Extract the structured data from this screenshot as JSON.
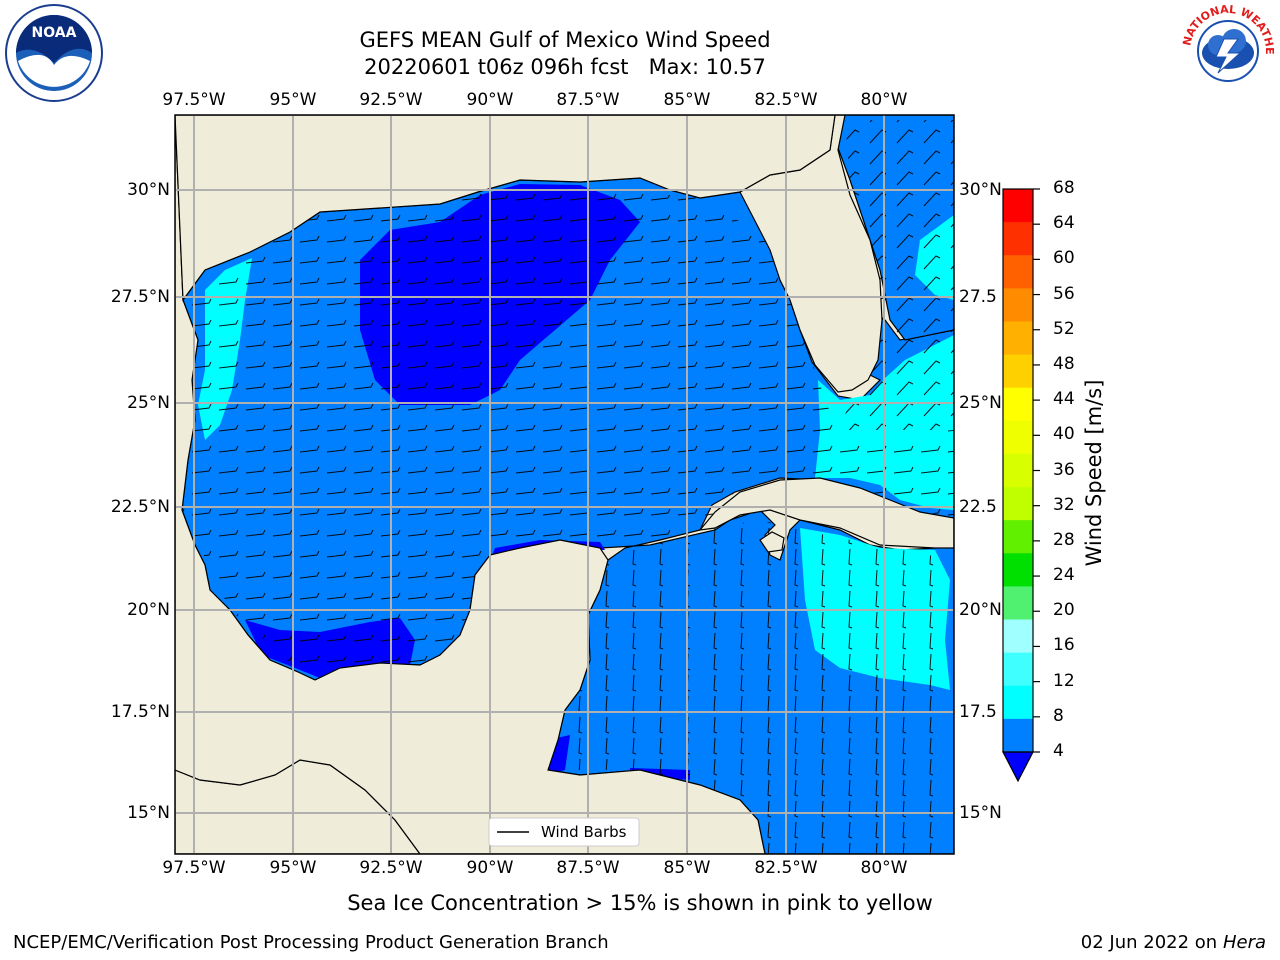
{
  "title": {
    "line1": "GEFS MEAN Gulf of Mexico Wind Speed",
    "line2": "20220601 t06z 096h fcst   Max: 10.57"
  },
  "logos": {
    "noaa_label": "NOAA",
    "nws_label": "NATIONAL WEATHER SERVICE"
  },
  "map": {
    "lon_labels": [
      "97.5°W",
      "95°W",
      "92.5°W",
      "90°W",
      "87.5°W",
      "85°W",
      "82.5°W",
      "80°W"
    ],
    "lat_labels_left": [
      "30°N",
      "27.5°N",
      "25°N",
      "22.5°N",
      "20°N",
      "17.5°N",
      "15°N"
    ],
    "lat_labels_right": [
      "30°N",
      "27.5",
      "25°N",
      "22.5",
      "20°N",
      "17.5",
      "15°N"
    ],
    "legend_label": "Wind Barbs",
    "colors": {
      "land": "#efedda",
      "ocean_4_8": "#0080ff",
      "ocean_lt4": "#0000ff",
      "ocean_8_12": "#00ffff",
      "grid": "#b0b0b0"
    }
  },
  "colorbar": {
    "label": "Wind Speed [m/s]",
    "ticks": [
      "68",
      "64",
      "60",
      "56",
      "52",
      "48",
      "44",
      "40",
      "36",
      "32",
      "28",
      "24",
      "20",
      "16",
      "12",
      "8",
      "4"
    ],
    "colors": [
      "#ff0000",
      "#ff3000",
      "#ff6000",
      "#ff8c00",
      "#ffb000",
      "#ffd000",
      "#ffff00",
      "#f0ff00",
      "#d8ff00",
      "#c0ff00",
      "#60f000",
      "#00e000",
      "#50f070",
      "#a0ffff",
      "#40ffff",
      "#00ffff",
      "#0080ff"
    ],
    "under_color": "#0000ff"
  },
  "caption": "Sea Ice Concentration > 15% is shown in pink to yellow",
  "footer": {
    "left": "NCEP/EMC/Verification Post Processing Product Generation Branch",
    "date": "02 Jun 2022 on",
    "host": "Hera"
  }
}
